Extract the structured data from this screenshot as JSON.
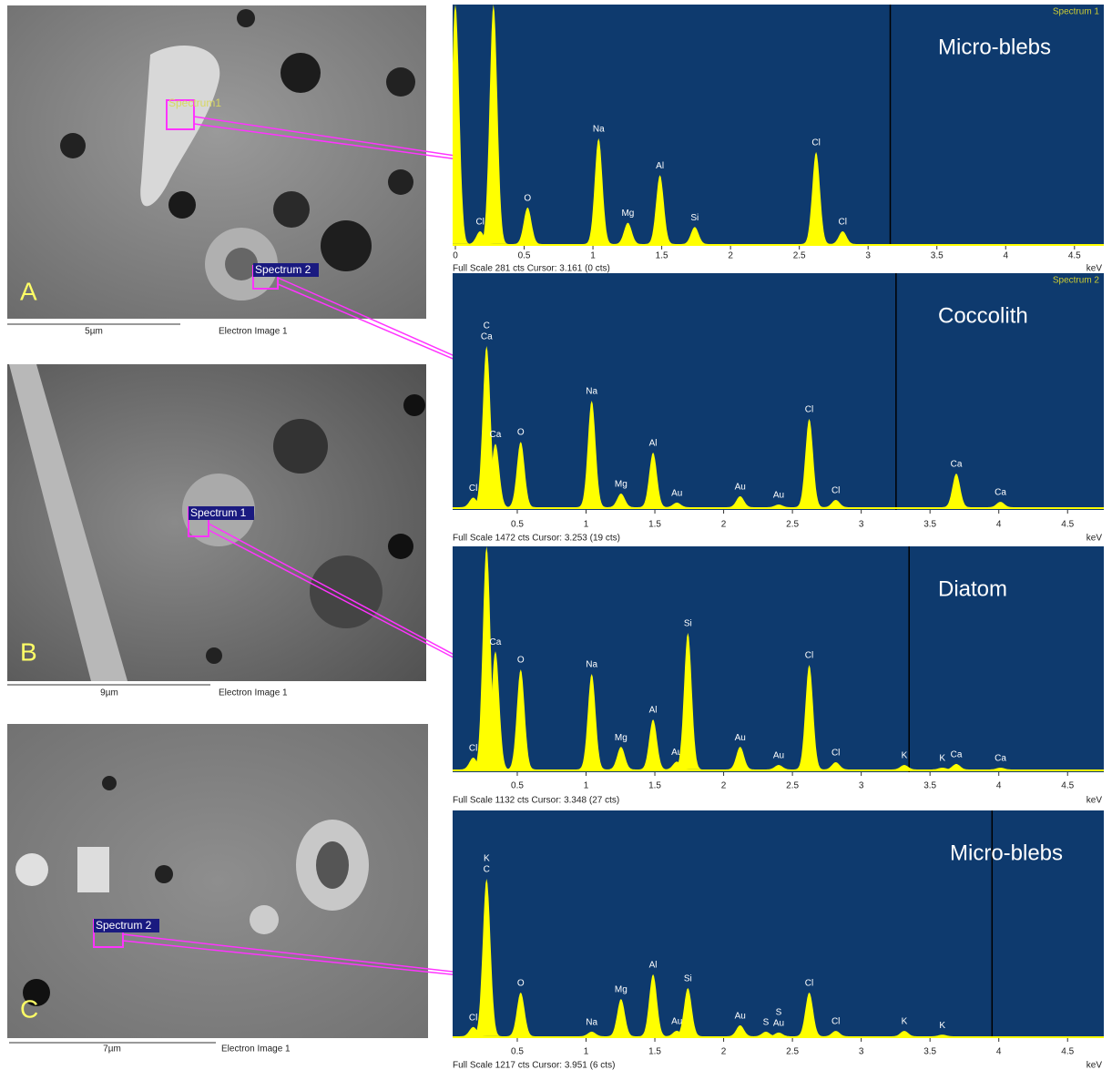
{
  "panels": [
    {
      "letter": "A",
      "scale": "5µm",
      "caption": "Electron Image 1",
      "spectrum_labels": [
        "Spectrum1",
        "Spectrum 2"
      ]
    },
    {
      "letter": "B",
      "scale": "9µm",
      "caption": "Electron Image 1",
      "spectrum_labels": [
        "Spectrum 1"
      ]
    },
    {
      "letter": "C",
      "scale": "7µm",
      "caption": "Electron Image 1",
      "spectrum_labels": [
        "Spectrum 2"
      ]
    }
  ],
  "chart_data": [
    {
      "type": "spectrum",
      "title": "Micro-blebs",
      "corner_label": "Spectrum 1",
      "footer": "Full Scale 281 cts Cursor: 3.161  (0 cts)",
      "cursor": 3.161,
      "x_label": "keV",
      "color": "#ffff00",
      "xlim": [
        0,
        4.7
      ],
      "ylim": [
        0,
        281
      ],
      "xticks": [
        0,
        0.5,
        1,
        1.5,
        2,
        2.5,
        3,
        3.5,
        4,
        4.5
      ],
      "peaks": [
        {
          "energy": 0,
          "counts": 281,
          "labels": []
        },
        {
          "energy": 0.277,
          "counts": 281,
          "labels": []
        },
        {
          "energy": 0.18,
          "counts": 15,
          "labels": [
            "Cl"
          ]
        },
        {
          "energy": 0.525,
          "counts": 43,
          "labels": [
            "O"
          ]
        },
        {
          "energy": 1.041,
          "counts": 124,
          "labels": [
            "Na"
          ]
        },
        {
          "energy": 1.254,
          "counts": 25,
          "labels": [
            "Mg"
          ]
        },
        {
          "energy": 1.487,
          "counts": 81,
          "labels": [
            "Al"
          ]
        },
        {
          "energy": 1.74,
          "counts": 20,
          "labels": [
            "Si"
          ]
        },
        {
          "energy": 2.622,
          "counts": 108,
          "labels": [
            "Cl"
          ]
        },
        {
          "energy": 2.815,
          "counts": 15,
          "labels": [
            "Cl"
          ]
        }
      ]
    },
    {
      "type": "spectrum",
      "title": "Coccolith",
      "corner_label": "Spectrum 2",
      "footer": "Full Scale 1472 cts Cursor: 3.253  (19 cts)",
      "cursor": 3.253,
      "x_label": "keV",
      "color": "#ffff00",
      "xlim": [
        0.05,
        4.75
      ],
      "ylim": [
        0,
        1472
      ],
      "xticks": [
        0.5,
        1,
        1.5,
        2,
        2.5,
        3,
        3.5,
        4,
        4.5
      ],
      "peaks": [
        {
          "energy": 0.18,
          "counts": 60,
          "labels": [
            "Cl"
          ]
        },
        {
          "energy": 0.277,
          "counts": 1014,
          "labels": [
            "C",
            "Ca"
          ]
        },
        {
          "energy": 0.341,
          "counts": 400,
          "labels": [
            "Ca"
          ]
        },
        {
          "energy": 0.525,
          "counts": 412,
          "labels": [
            "O"
          ]
        },
        {
          "energy": 1.041,
          "counts": 670,
          "labels": [
            "Na"
          ]
        },
        {
          "energy": 1.254,
          "counts": 86,
          "labels": [
            "Mg"
          ]
        },
        {
          "energy": 1.487,
          "counts": 344,
          "labels": [
            "Al"
          ]
        },
        {
          "energy": 1.66,
          "counts": 29,
          "labels": [
            "Au"
          ]
        },
        {
          "energy": 2.12,
          "counts": 69,
          "labels": [
            "Au"
          ]
        },
        {
          "energy": 2.4,
          "counts": 17,
          "labels": [
            "Au"
          ]
        },
        {
          "energy": 2.622,
          "counts": 556,
          "labels": [
            "Cl"
          ]
        },
        {
          "energy": 2.815,
          "counts": 46,
          "labels": [
            "Cl"
          ]
        },
        {
          "energy": 3.691,
          "counts": 212,
          "labels": [
            "Ca"
          ]
        },
        {
          "energy": 4.012,
          "counts": 34,
          "labels": [
            "Ca"
          ]
        }
      ]
    },
    {
      "type": "spectrum",
      "title": "Diatom",
      "footer": "Full Scale 1132 cts Cursor: 3.348  (27 cts)",
      "cursor": 3.348,
      "x_label": "keV",
      "color": "#ffff00",
      "xlim": [
        0.05,
        4.75
      ],
      "ylim": [
        0,
        1132
      ],
      "xticks": [
        0.5,
        1,
        1.5,
        2,
        2.5,
        3,
        3.5,
        4,
        4.5
      ],
      "peaks": [
        {
          "energy": 0.18,
          "counts": 60,
          "labels": [
            "Cl"
          ]
        },
        {
          "energy": 0.277,
          "counts": 1132,
          "labels": []
        },
        {
          "energy": 0.341,
          "counts": 600,
          "labels": [
            "Ca"
          ]
        },
        {
          "energy": 0.525,
          "counts": 508,
          "labels": [
            "O"
          ]
        },
        {
          "energy": 1.041,
          "counts": 485,
          "labels": [
            "Na"
          ]
        },
        {
          "energy": 1.254,
          "counts": 115,
          "labels": [
            "Mg"
          ]
        },
        {
          "energy": 1.487,
          "counts": 254,
          "labels": [
            "Al"
          ]
        },
        {
          "energy": 1.66,
          "counts": 40,
          "labels": [
            "Au"
          ]
        },
        {
          "energy": 1.74,
          "counts": 693,
          "labels": [
            "Si"
          ]
        },
        {
          "energy": 2.12,
          "counts": 115,
          "labels": [
            "Au"
          ]
        },
        {
          "energy": 2.4,
          "counts": 23,
          "labels": [
            "Au"
          ]
        },
        {
          "energy": 2.622,
          "counts": 531,
          "labels": [
            "Cl"
          ]
        },
        {
          "energy": 2.815,
          "counts": 37,
          "labels": [
            "Cl"
          ]
        },
        {
          "energy": 3.313,
          "counts": 23,
          "labels": [
            "K"
          ]
        },
        {
          "energy": 3.59,
          "counts": 9,
          "labels": [
            "K"
          ]
        },
        {
          "energy": 3.691,
          "counts": 28,
          "labels": [
            "Ca"
          ]
        },
        {
          "energy": 4.012,
          "counts": 9,
          "labels": [
            "Ca"
          ]
        }
      ]
    },
    {
      "type": "spectrum",
      "title": "Micro-blebs",
      "footer": "Full Scale 1217 cts Cursor: 3.951  (6 cts)",
      "cursor": 3.951,
      "x_label": "keV",
      "color": "#ffff00",
      "xlim": [
        0.05,
        4.75
      ],
      "ylim": [
        0,
        1217
      ],
      "xticks": [
        0.5,
        1,
        1.5,
        2,
        2.5,
        3,
        3.5,
        4,
        4.5
      ],
      "peaks": [
        {
          "energy": 0.18,
          "counts": 50,
          "labels": [
            "Cl"
          ]
        },
        {
          "energy": 0.277,
          "counts": 849,
          "labels": [
            "K",
            "C"
          ]
        },
        {
          "energy": 0.525,
          "counts": 236,
          "labels": [
            "O"
          ]
        },
        {
          "energy": 1.041,
          "counts": 25,
          "labels": [
            "Na"
          ]
        },
        {
          "energy": 1.254,
          "counts": 201,
          "labels": [
            "Mg"
          ]
        },
        {
          "energy": 1.487,
          "counts": 334,
          "labels": [
            "Al"
          ]
        },
        {
          "energy": 1.66,
          "counts": 30,
          "labels": [
            "Au"
          ]
        },
        {
          "energy": 1.74,
          "counts": 260,
          "labels": [
            "Si"
          ]
        },
        {
          "energy": 2.12,
          "counts": 59,
          "labels": [
            "Au"
          ]
        },
        {
          "energy": 2.307,
          "counts": 25,
          "labels": [
            "S"
          ]
        },
        {
          "energy": 2.4,
          "counts": 20,
          "labels": [
            "S",
            "Au"
          ]
        },
        {
          "energy": 2.622,
          "counts": 236,
          "labels": [
            "Cl"
          ]
        },
        {
          "energy": 2.815,
          "counts": 29,
          "labels": [
            "Cl"
          ]
        },
        {
          "energy": 3.313,
          "counts": 29,
          "labels": [
            "K"
          ]
        },
        {
          "energy": 3.59,
          "counts": 9,
          "labels": [
            "K"
          ]
        }
      ]
    }
  ]
}
